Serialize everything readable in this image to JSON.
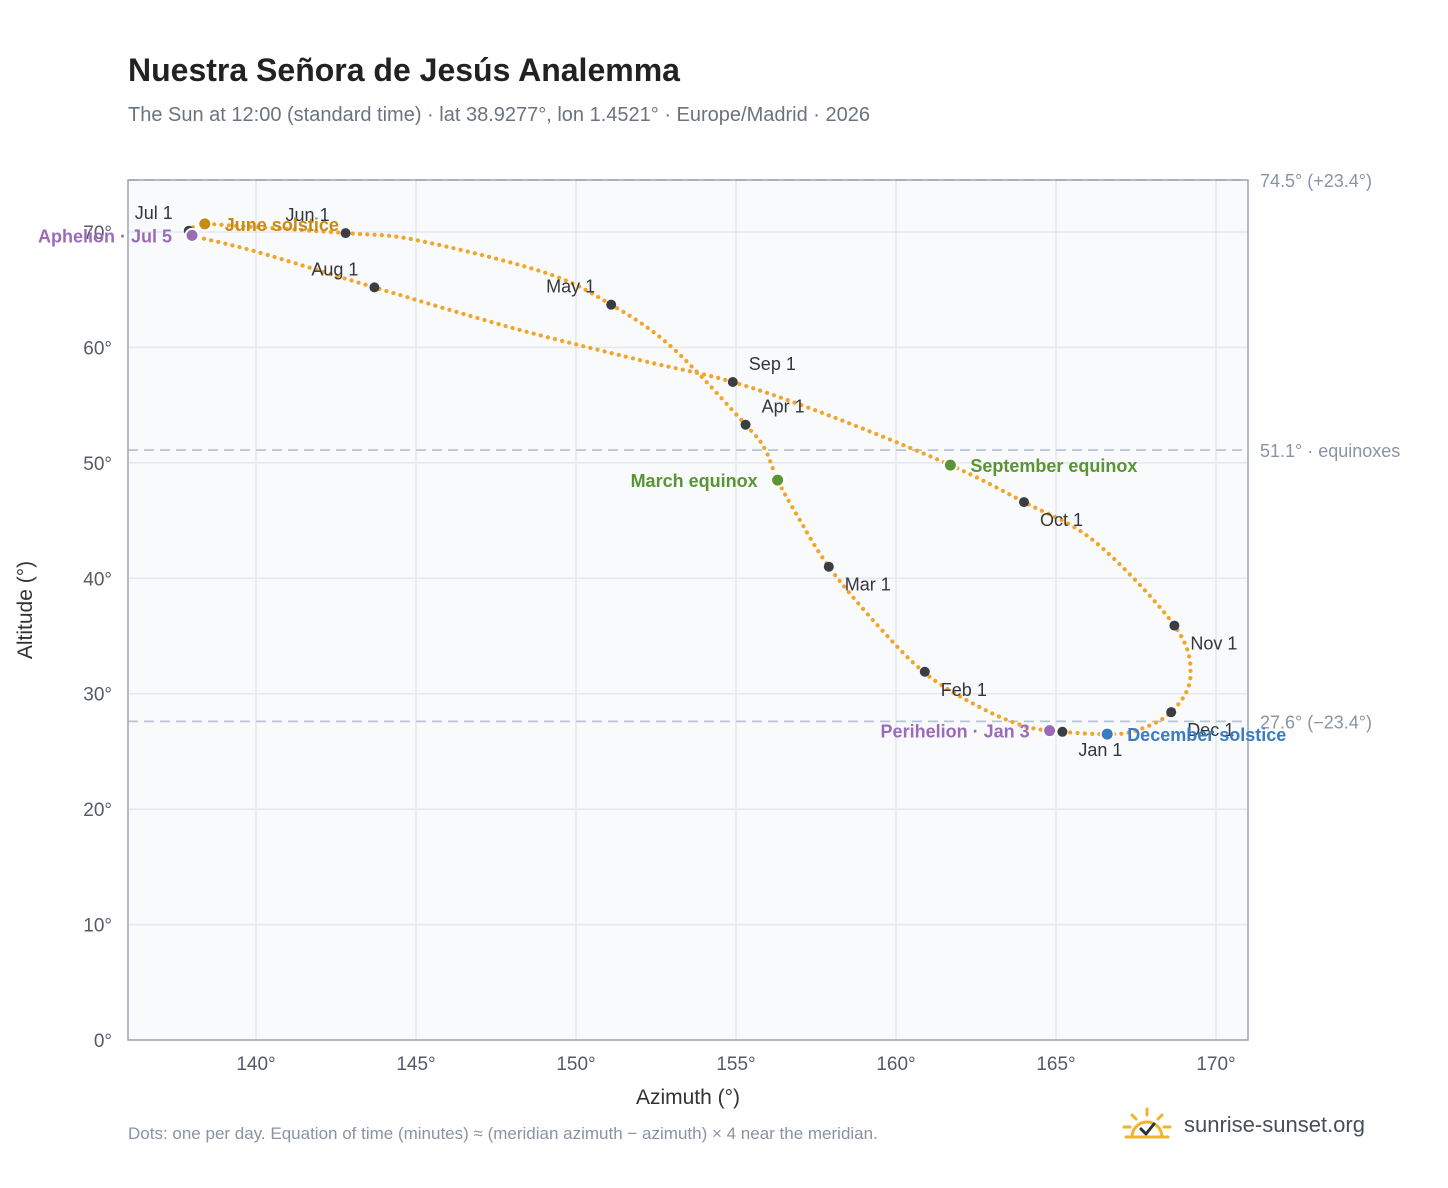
{
  "title": "Nuestra Señora de Jesús Analemma",
  "subtitle": "The Sun at 12:00 (standard time) · lat 38.9277°, lon 1.4521° · Europe/Madrid · 2026",
  "footnote": "Dots: one per day. Equation of time (minutes) ≈ (meridian azimuth − azimuth) × 4 near the meridian.",
  "brand": {
    "text": "sunrise-sunset.org",
    "icon": "sun-icon"
  },
  "colors": {
    "curve": "#f2a52b",
    "month_dot": "#3a3d44",
    "equinox": "#5a9433",
    "aphelion": "#9b6bb8",
    "june_solstice": "#c98a14",
    "december_solstice": "#3a7cc2",
    "reference": "#b8c4d4",
    "plot_bg": "#f8fafc",
    "grid": "#e4e8ee"
  },
  "chart_data": {
    "type": "scatter",
    "xlabel": "Azimuth (°)",
    "ylabel": "Altitude (°)",
    "xlim": [
      136,
      171
    ],
    "ylim": [
      0,
      74.5
    ],
    "x_ticks": [
      140,
      145,
      150,
      155,
      160,
      165,
      170
    ],
    "y_ticks": [
      0,
      10,
      20,
      30,
      40,
      50,
      60,
      70
    ],
    "grid": true,
    "reference_lines": [
      {
        "y": 74.5,
        "label": "74.5° (+23.4°)"
      },
      {
        "y": 51.1,
        "label": "51.1° · equinoxes"
      },
      {
        "y": 27.6,
        "label": "27.6° (−23.4°)"
      }
    ],
    "path": [
      [
        165.2,
        26.7
      ],
      [
        164.0,
        27.2
      ],
      [
        162.5,
        29.0
      ],
      [
        160.9,
        31.8
      ],
      [
        159.4,
        36.0
      ],
      [
        157.9,
        41.0
      ],
      [
        156.9,
        45.5
      ],
      [
        156.3,
        48.5
      ],
      [
        155.9,
        51.2
      ],
      [
        155.3,
        53.3
      ],
      [
        153.0,
        60.0
      ],
      [
        151.1,
        63.7
      ],
      [
        149.0,
        66.5
      ],
      [
        145.0,
        69.3
      ],
      [
        142.8,
        69.9
      ],
      [
        139.0,
        70.6
      ],
      [
        138.4,
        70.7
      ],
      [
        137.9,
        70.2
      ],
      [
        138.0,
        69.7
      ],
      [
        140.0,
        68.3
      ],
      [
        143.7,
        65.2
      ],
      [
        148.0,
        61.7
      ],
      [
        152.0,
        58.9
      ],
      [
        154.9,
        57.0
      ],
      [
        158.0,
        54.0
      ],
      [
        161.7,
        49.8
      ],
      [
        164.0,
        46.6
      ],
      [
        166.2,
        43.2
      ],
      [
        168.7,
        35.9
      ],
      [
        169.2,
        31.5
      ],
      [
        168.6,
        28.4
      ],
      [
        167.5,
        26.8
      ],
      [
        166.6,
        26.5
      ],
      [
        165.2,
        26.7
      ]
    ],
    "month_markers": [
      {
        "label": "Jan 1",
        "x": 165.2,
        "y": 26.7,
        "pos": "below"
      },
      {
        "label": "Feb 1",
        "x": 160.9,
        "y": 31.9,
        "pos": "right-below"
      },
      {
        "label": "Mar 1",
        "x": 157.9,
        "y": 41.0,
        "pos": "right-below"
      },
      {
        "label": "Apr 1",
        "x": 155.3,
        "y": 53.3,
        "pos": "right-above"
      },
      {
        "label": "May 1",
        "x": 151.1,
        "y": 63.7,
        "pos": "left-above"
      },
      {
        "label": "Jun 1",
        "x": 142.8,
        "y": 69.9,
        "pos": "left-above"
      },
      {
        "label": "Jul 1",
        "x": 137.9,
        "y": 70.1,
        "pos": "left-above"
      },
      {
        "label": "Aug 1",
        "x": 143.7,
        "y": 65.2,
        "pos": "left-above"
      },
      {
        "label": "Sep 1",
        "x": 154.9,
        "y": 57.0,
        "pos": "right-above"
      },
      {
        "label": "Oct 1",
        "x": 164.0,
        "y": 46.6,
        "pos": "right-below"
      },
      {
        "label": "Nov 1",
        "x": 168.7,
        "y": 35.9,
        "pos": "right-below"
      },
      {
        "label": "Dec 1",
        "x": 168.6,
        "y": 28.4,
        "pos": "right-below"
      }
    ],
    "events": [
      {
        "label": "March equinox",
        "x": 156.3,
        "y": 48.5,
        "color": "#5a9433",
        "anchor": "left"
      },
      {
        "label": "September equinox",
        "x": 161.7,
        "y": 49.8,
        "color": "#5a9433",
        "anchor": "right"
      },
      {
        "label": "June solstice",
        "x": 138.4,
        "y": 70.7,
        "color": "#c98a14",
        "anchor": "right"
      },
      {
        "label": "December solstice",
        "x": 166.6,
        "y": 26.5,
        "color": "#3a7cc2",
        "anchor": "right"
      },
      {
        "label": "Aphelion · Jul 5",
        "x": 138.0,
        "y": 69.7,
        "color": "#9b6bb8",
        "anchor": "left"
      },
      {
        "label": "Perihelion · Jan 3",
        "x": 164.8,
        "y": 26.8,
        "color": "#9b6bb8",
        "anchor": "left"
      }
    ]
  }
}
